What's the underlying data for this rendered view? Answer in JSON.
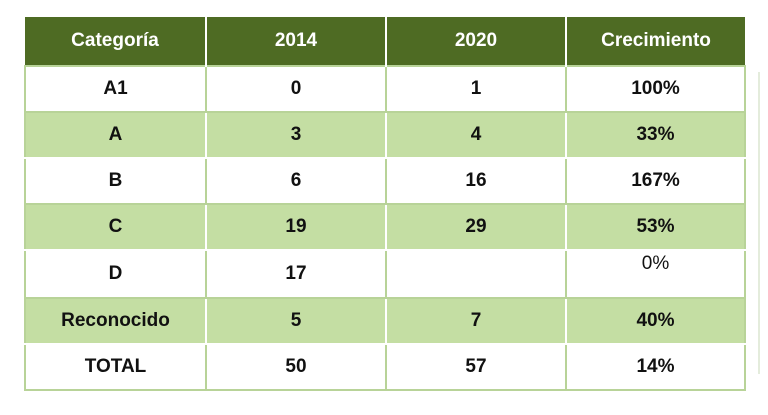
{
  "table": {
    "headers": [
      "Categoría",
      "2014",
      "2020",
      "Crecimiento"
    ],
    "rows": [
      {
        "categoria": "A1",
        "y2014": "0",
        "y2020": "1",
        "crecimiento": "100%"
      },
      {
        "categoria": "A",
        "y2014": "3",
        "y2020": "4",
        "crecimiento": "33%"
      },
      {
        "categoria": "B",
        "y2014": "6",
        "y2020": "16",
        "crecimiento": "167%"
      },
      {
        "categoria": "C",
        "y2014": "19",
        "y2020": "29",
        "crecimiento": "53%"
      },
      {
        "categoria": "D",
        "y2014": "17",
        "y2020": "",
        "crecimiento": "0%"
      },
      {
        "categoria": "Reconocido",
        "y2014": "5",
        "y2020": "7",
        "crecimiento": "40%"
      },
      {
        "categoria": "TOTAL",
        "y2014": "50",
        "y2020": "57",
        "crecimiento": "14%"
      }
    ]
  },
  "colors": {
    "header_bg": "#4e6b23",
    "header_text": "#ffffff",
    "band_bg": "#c4dea3",
    "border": "#b8d398"
  }
}
